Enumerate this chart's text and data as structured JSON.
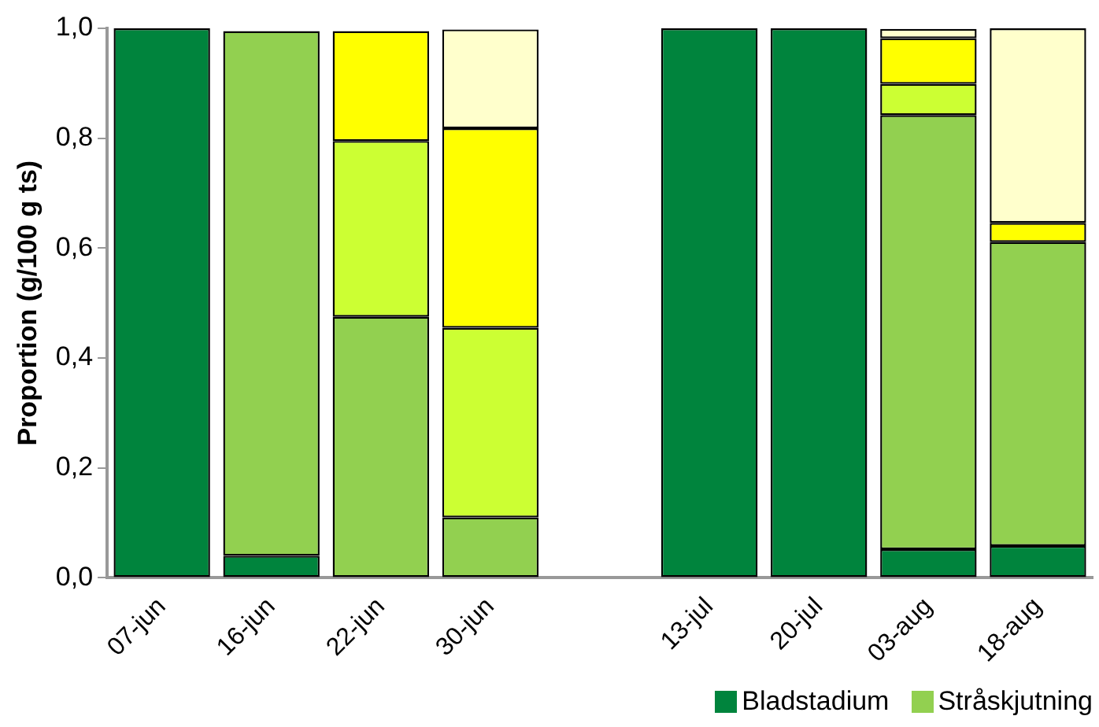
{
  "chart_data": {
    "type": "bar",
    "stacked": true,
    "ylabel": "Proportion (g/100 g ts)",
    "categories": [
      "07-jun",
      "16-jun",
      "22-jun",
      "30-jun",
      null,
      "13-jul",
      "20-jul",
      "03-aug",
      "18-aug"
    ],
    "series": [
      {
        "name": "Bladstadium",
        "color": "#00843d",
        "values": [
          1.0,
          0.04,
          null,
          null,
          null,
          1.0,
          1.0,
          0.052,
          0.058
        ]
      },
      {
        "name": "Stråskjutning",
        "color": "#92d050",
        "values": [
          null,
          0.955,
          0.475,
          0.11,
          null,
          null,
          null,
          0.79,
          0.553
        ]
      },
      {
        "color": "#ccff33",
        "values": [
          null,
          null,
          0.32,
          0.345,
          null,
          null,
          null,
          0.057,
          null
        ]
      },
      {
        "color": "#ffff00",
        "values": [
          null,
          null,
          0.2,
          0.363,
          null,
          null,
          null,
          0.083,
          0.035
        ]
      },
      {
        "color": "#ffffcc",
        "values": [
          null,
          null,
          null,
          0.18,
          null,
          null,
          null,
          0.017,
          0.354
        ]
      }
    ],
    "ylim": [
      0,
      1
    ],
    "yticks": [
      {
        "value": 0,
        "label": "0,0"
      },
      {
        "value": 0.2,
        "label": "0,2"
      },
      {
        "value": 0.4,
        "label": "0,4"
      },
      {
        "value": 0.6,
        "label": "0,6"
      },
      {
        "value": 0.8,
        "label": "0,8"
      },
      {
        "value": 1,
        "label": "1,0"
      }
    ],
    "grid": false,
    "legend": "bottom"
  }
}
